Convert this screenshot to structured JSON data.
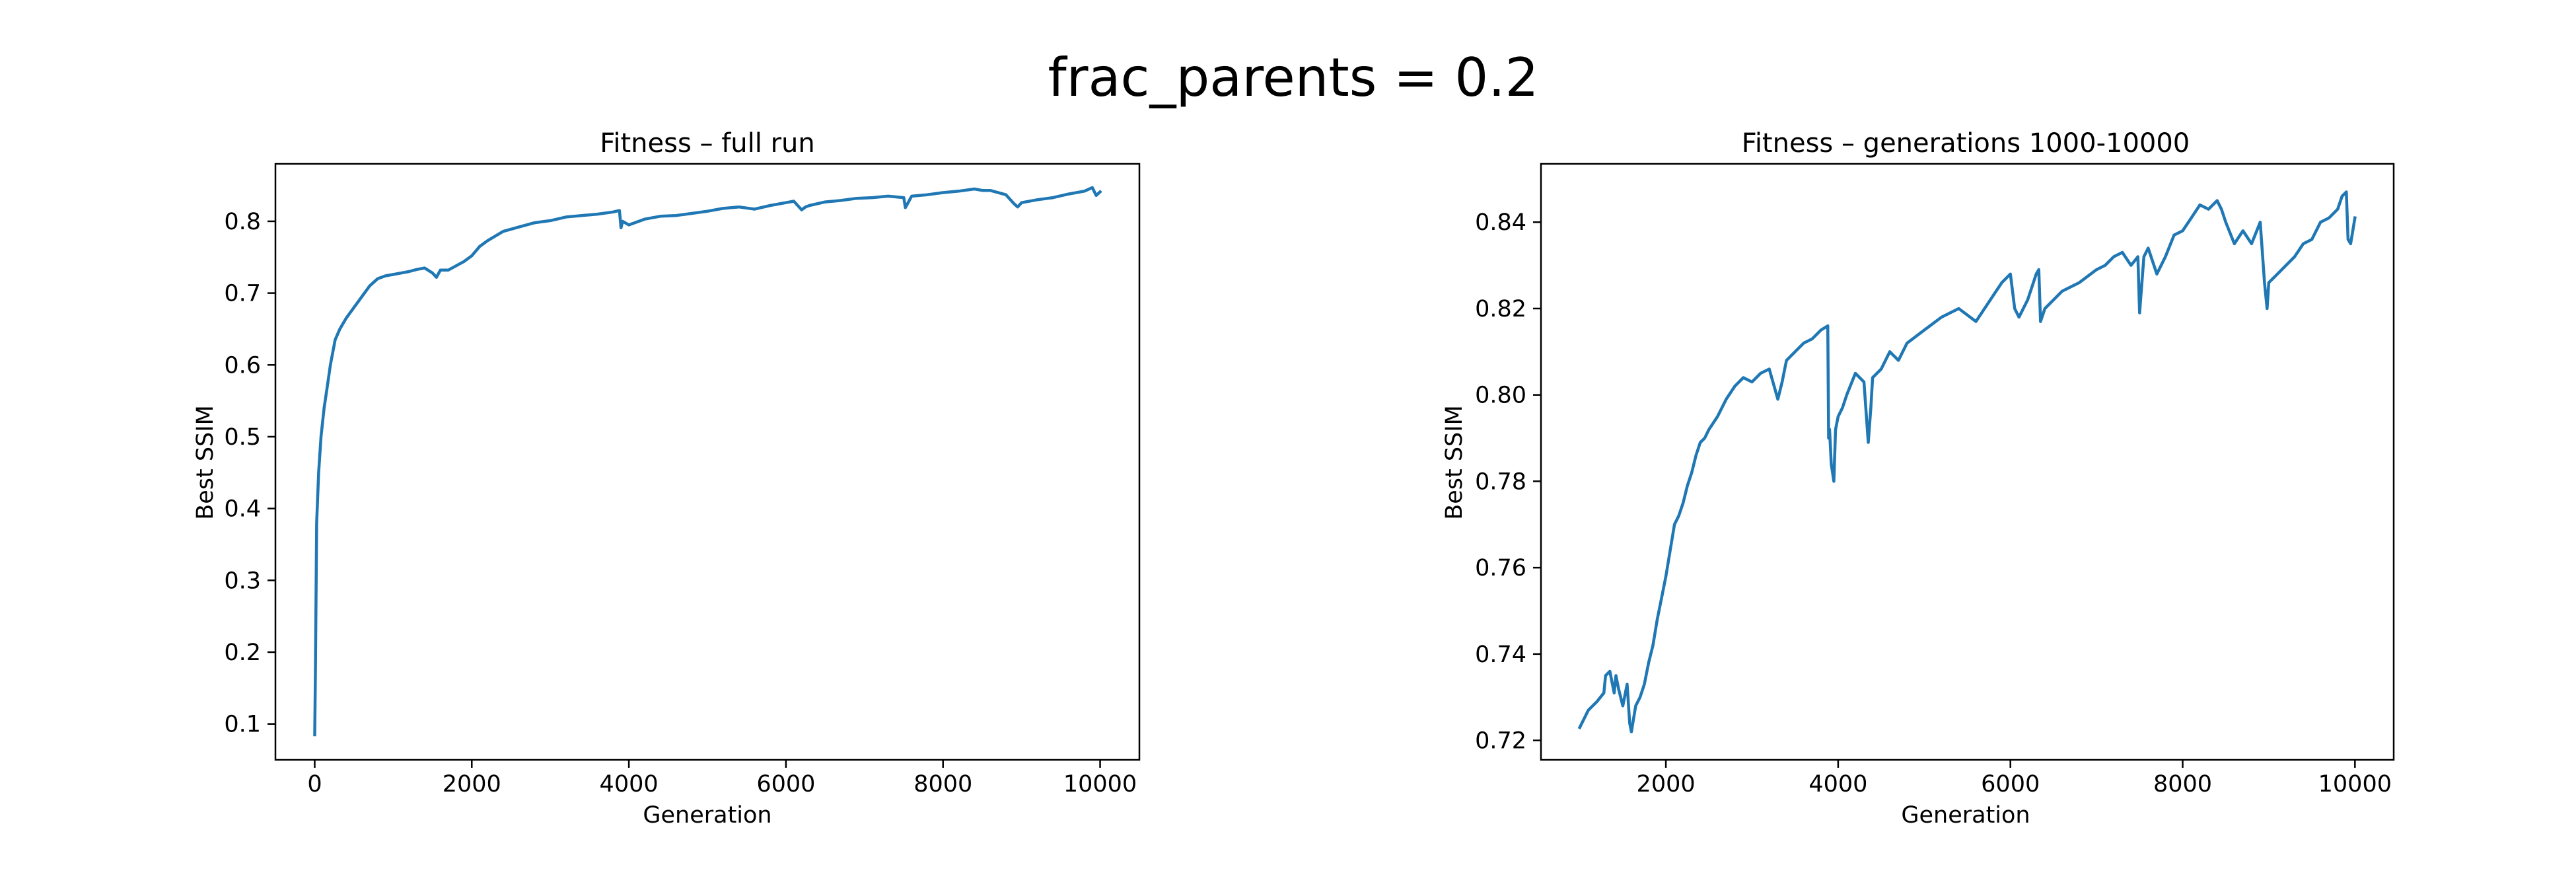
{
  "figure": {
    "suptitle": "frac_parents = 0.2"
  },
  "colors": {
    "series": "#1f77b4",
    "axes": "#000000",
    "background": "#ffffff"
  },
  "chart_data": [
    {
      "type": "line",
      "title": "Fitness – full run",
      "xlabel": "Generation",
      "ylabel": "Best SSIM",
      "xlim": [
        -500,
        10500
      ],
      "ylim": [
        0.05,
        0.88
      ],
      "xticks": [
        0,
        2000,
        4000,
        6000,
        8000,
        10000
      ],
      "xtick_labels": [
        "0",
        "2000",
        "4000",
        "6000",
        "8000",
        "10000"
      ],
      "yticks": [
        0.1,
        0.2,
        0.3,
        0.4,
        0.5,
        0.6,
        0.7,
        0.8
      ],
      "ytick_labels": [
        "0.1",
        "0.2",
        "0.3",
        "0.4",
        "0.5",
        "0.6",
        "0.7",
        "0.8"
      ],
      "grid": false,
      "legend": "none",
      "series": [
        {
          "x": [
            0,
            10,
            25,
            50,
            80,
            120,
            160,
            200,
            260,
            320,
            400,
            500,
            600,
            700,
            800,
            900,
            1000,
            1100,
            1200,
            1300,
            1400,
            1500,
            1550,
            1600,
            1700,
            1800,
            1900,
            2000,
            2100,
            2200,
            2400,
            2600,
            2800,
            3000,
            3200,
            3400,
            3600,
            3800,
            3880,
            3900,
            3920,
            4000,
            4200,
            4400,
            4600,
            4800,
            5000,
            5200,
            5400,
            5600,
            5800,
            6000,
            6100,
            6200,
            6250,
            6300,
            6500,
            6700,
            6900,
            7100,
            7300,
            7500,
            7520,
            7600,
            7800,
            8000,
            8200,
            8400,
            8500,
            8600,
            8800,
            8900,
            8950,
            9000,
            9200,
            9400,
            9600,
            9800,
            9900,
            9950,
            10000
          ],
          "y": [
            0.085,
            0.18,
            0.38,
            0.45,
            0.5,
            0.54,
            0.57,
            0.6,
            0.635,
            0.65,
            0.665,
            0.68,
            0.695,
            0.71,
            0.72,
            0.724,
            0.726,
            0.728,
            0.73,
            0.733,
            0.735,
            0.728,
            0.722,
            0.732,
            0.732,
            0.738,
            0.744,
            0.752,
            0.765,
            0.773,
            0.786,
            0.792,
            0.798,
            0.801,
            0.806,
            0.808,
            0.81,
            0.813,
            0.815,
            0.791,
            0.8,
            0.795,
            0.803,
            0.807,
            0.808,
            0.811,
            0.814,
            0.818,
            0.82,
            0.817,
            0.822,
            0.826,
            0.828,
            0.816,
            0.82,
            0.822,
            0.827,
            0.829,
            0.832,
            0.833,
            0.835,
            0.833,
            0.819,
            0.835,
            0.837,
            0.84,
            0.842,
            0.845,
            0.843,
            0.843,
            0.837,
            0.825,
            0.82,
            0.826,
            0.83,
            0.833,
            0.838,
            0.842,
            0.847,
            0.836,
            0.841
          ]
        }
      ]
    },
    {
      "type": "line",
      "title": "Fitness – generations 1000-10000",
      "xlabel": "Generation",
      "ylabel": "Best SSIM",
      "xlim": [
        550,
        10450
      ],
      "ylim": [
        0.7155,
        0.8535
      ],
      "xticks": [
        2000,
        4000,
        6000,
        8000,
        10000
      ],
      "xtick_labels": [
        "2000",
        "4000",
        "6000",
        "8000",
        "10000"
      ],
      "yticks": [
        0.72,
        0.74,
        0.76,
        0.78,
        0.8,
        0.82,
        0.84
      ],
      "ytick_labels": [
        "0.72",
        "0.74",
        "0.76",
        "0.78",
        "0.80",
        "0.82",
        "0.84"
      ],
      "grid": false,
      "legend": "none",
      "series": [
        {
          "x": [
            1000,
            1050,
            1100,
            1200,
            1280,
            1300,
            1350,
            1400,
            1420,
            1450,
            1500,
            1550,
            1580,
            1600,
            1650,
            1700,
            1750,
            1800,
            1850,
            1900,
            1950,
            2000,
            2050,
            2100,
            2150,
            2200,
            2250,
            2300,
            2350,
            2400,
            2450,
            2500,
            2600,
            2700,
            2800,
            2900,
            3000,
            3100,
            3200,
            3300,
            3350,
            3380,
            3400,
            3500,
            3600,
            3700,
            3800,
            3880,
            3890,
            3900,
            3920,
            3950,
            3970,
            4000,
            4050,
            4100,
            4200,
            4300,
            4350,
            4380,
            4400,
            4500,
            4600,
            4700,
            4800,
            5000,
            5200,
            5400,
            5600,
            5800,
            5900,
            6000,
            6050,
            6100,
            6200,
            6300,
            6330,
            6350,
            6400,
            6600,
            6800,
            7000,
            7100,
            7200,
            7300,
            7400,
            7480,
            7500,
            7550,
            7600,
            7700,
            7800,
            7900,
            8000,
            8100,
            8200,
            8300,
            8400,
            8450,
            8500,
            8600,
            8700,
            8800,
            8900,
            8950,
            8980,
            9000,
            9100,
            9200,
            9300,
            9400,
            9500,
            9600,
            9700,
            9800,
            9850,
            9900,
            9920,
            9950,
            10000
          ],
          "y": [
            0.723,
            0.725,
            0.727,
            0.729,
            0.731,
            0.735,
            0.736,
            0.731,
            0.735,
            0.732,
            0.728,
            0.733,
            0.724,
            0.722,
            0.728,
            0.73,
            0.733,
            0.738,
            0.742,
            0.748,
            0.753,
            0.758,
            0.764,
            0.77,
            0.772,
            0.775,
            0.779,
            0.782,
            0.786,
            0.789,
            0.79,
            0.792,
            0.795,
            0.799,
            0.802,
            0.804,
            0.803,
            0.805,
            0.806,
            0.799,
            0.803,
            0.806,
            0.808,
            0.81,
            0.812,
            0.813,
            0.815,
            0.816,
            0.79,
            0.792,
            0.784,
            0.78,
            0.792,
            0.795,
            0.797,
            0.8,
            0.805,
            0.803,
            0.789,
            0.797,
            0.804,
            0.806,
            0.81,
            0.808,
            0.812,
            0.815,
            0.818,
            0.82,
            0.817,
            0.823,
            0.826,
            0.828,
            0.82,
            0.818,
            0.822,
            0.828,
            0.829,
            0.817,
            0.82,
            0.824,
            0.826,
            0.829,
            0.83,
            0.832,
            0.833,
            0.83,
            0.832,
            0.819,
            0.832,
            0.834,
            0.828,
            0.832,
            0.837,
            0.838,
            0.841,
            0.844,
            0.843,
            0.845,
            0.843,
            0.84,
            0.835,
            0.838,
            0.835,
            0.84,
            0.826,
            0.82,
            0.826,
            0.828,
            0.83,
            0.832,
            0.835,
            0.836,
            0.84,
            0.841,
            0.843,
            0.846,
            0.847,
            0.836,
            0.835,
            0.841
          ]
        }
      ]
    }
  ]
}
